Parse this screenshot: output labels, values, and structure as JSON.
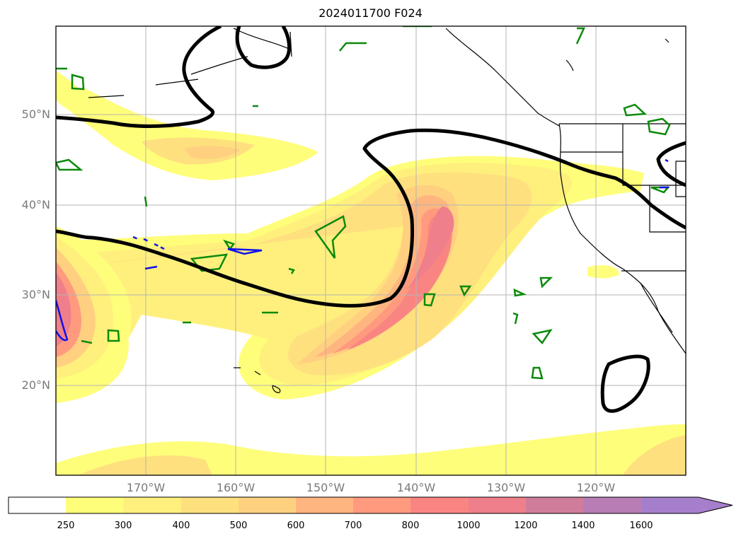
{
  "title": "2024011700 F024",
  "lat_labels": [
    "50°N",
    "40°N",
    "30°N",
    "20°N"
  ],
  "lon_labels": [
    "170°W",
    "160°W",
    "150°W",
    "140°W",
    "130°W",
    "120°W"
  ],
  "colorbar": {
    "levels": [
      "250",
      "300",
      "400",
      "500",
      "600",
      "700",
      "800",
      "1000",
      "1200",
      "1400",
      "1600"
    ],
    "colors": [
      "#ffffff",
      "#fffe7a",
      "#fff07e",
      "#ffe07f",
      "#ffd080",
      "#ffb57f",
      "#ff9a7f",
      "#f98582",
      "#ef7f8a",
      "#d07d9c",
      "#b87db4",
      "#a57fcc"
    ],
    "extend": "max"
  },
  "legend_colors": {
    "contour_black": "#000000",
    "contour_green": "#0a8a0a",
    "contour_blue": "#1010ee",
    "coast": "#000000",
    "grid": "#b4b4b4"
  }
}
